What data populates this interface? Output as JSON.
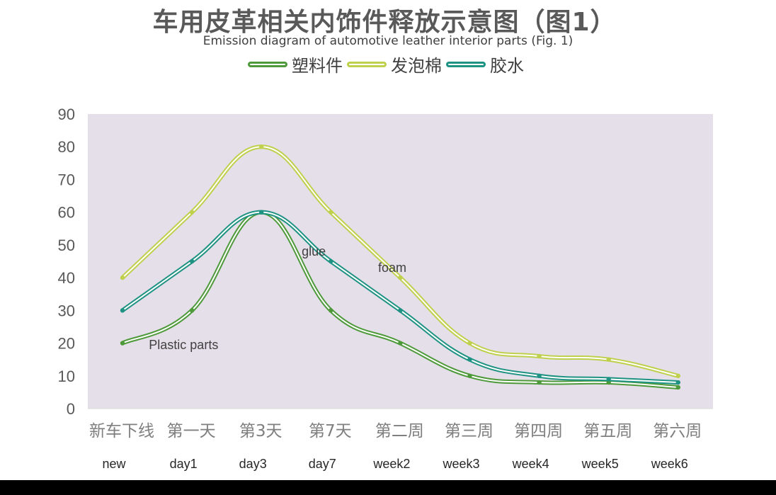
{
  "chart_data": {
    "type": "line",
    "title": "车用皮革相关内饰件释放示意图（图1）",
    "subtitle": "Emission diagram of automotive leather interior parts (Fig. 1)",
    "categories": [
      "新车下线",
      "第一天",
      "第3天",
      "第7天",
      "第二周",
      "第三周",
      "第四周",
      "第五周",
      "第六周"
    ],
    "categories_en": [
      "new",
      "day1",
      "day3",
      "day7",
      "week2",
      "week3",
      "week4",
      "week5",
      "week6"
    ],
    "ylim": [
      0,
      90
    ],
    "yticks": [
      0,
      10,
      20,
      30,
      40,
      50,
      60,
      70,
      80,
      90
    ],
    "grid": false,
    "legend_position": "top-center",
    "plot_background": "#e5dfea",
    "series": [
      {
        "name": "塑料件",
        "color": "#4e9a3a",
        "values": [
          20,
          30,
          60,
          30,
          20,
          10,
          8,
          8,
          6.5
        ]
      },
      {
        "name": "发泡棉",
        "color": "#bfd04c",
        "values": [
          40,
          60,
          80,
          60,
          40,
          20,
          16,
          15,
          10
        ]
      },
      {
        "name": "胶水",
        "color": "#1f9383",
        "values": [
          30,
          45,
          60,
          45,
          30,
          15,
          10,
          9,
          8
        ]
      }
    ],
    "annotations": [
      {
        "text": "Plastic parts",
        "series": 0,
        "x_index": 0.9,
        "y": 19.5
      },
      {
        "text": "glue",
        "series": 2,
        "x_index": 3.1,
        "y": 48
      },
      {
        "text": "foam",
        "series": 1,
        "x_index": 4.2,
        "y": 43
      }
    ]
  }
}
